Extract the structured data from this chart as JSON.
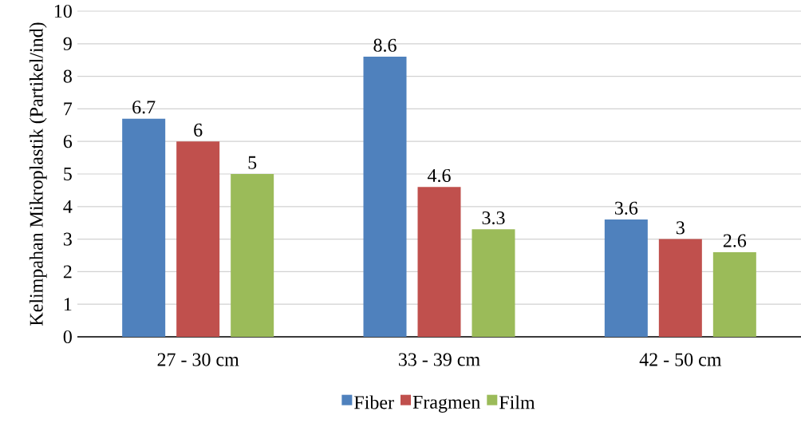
{
  "chart_data": {
    "type": "bar",
    "ylabel": "Kelimpahan Mikroplastik (Partikel/ind)",
    "categories": [
      "27 - 30 cm",
      "33 - 39 cm",
      "42 - 50 cm"
    ],
    "series": [
      {
        "name": "Fiber",
        "color": "#4f81bd",
        "values": [
          6.7,
          8.6,
          3.6
        ]
      },
      {
        "name": "Fragmen",
        "color": "#c0504d",
        "values": [
          6,
          4.6,
          3
        ]
      },
      {
        "name": "Film",
        "color": "#9bbb59",
        "values": [
          5,
          3.3,
          2.6
        ]
      }
    ],
    "ylim": [
      0,
      10
    ],
    "yticks": [
      0,
      1,
      2,
      3,
      4,
      5,
      6,
      7,
      8,
      9,
      10
    ],
    "grid": "y",
    "legend": "bottom",
    "data_labels": true
  }
}
